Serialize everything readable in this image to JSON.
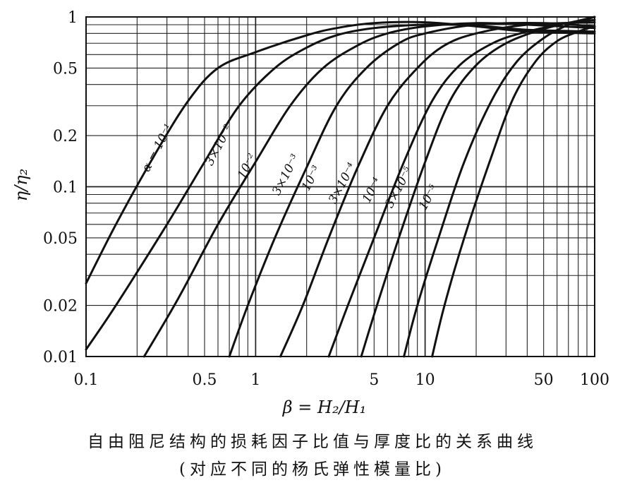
{
  "chart_data": {
    "type": "line",
    "title": "",
    "xlabel": "β = H₂/H₁",
    "ylabel": "η/η₂",
    "xscale": "log",
    "yscale": "log",
    "xlim": [
      0.1,
      100
    ],
    "ylim": [
      0.01,
      1
    ],
    "grid": true,
    "x_ticks": [
      {
        "value": 0.1,
        "label": "0.1"
      },
      {
        "value": 0.5,
        "label": "0.5"
      },
      {
        "value": 1,
        "label": "1"
      },
      {
        "value": 5,
        "label": "5"
      },
      {
        "value": 10,
        "label": "10"
      },
      {
        "value": 50,
        "label": "50"
      },
      {
        "value": 100,
        "label": "100"
      }
    ],
    "y_ticks": [
      {
        "value": 1,
        "label": "1"
      },
      {
        "value": 0.5,
        "label": "0.5"
      },
      {
        "value": 0.2,
        "label": "0.2"
      },
      {
        "value": 0.1,
        "label": "0.1"
      },
      {
        "value": 0.05,
        "label": "0.05"
      },
      {
        "value": 0.02,
        "label": "0.02"
      },
      {
        "value": 0.01,
        "label": "0.01"
      }
    ],
    "series": [
      {
        "name": "α = 10⁻¹",
        "points": [
          [
            0.1,
            0.027
          ],
          [
            0.15,
            0.06
          ],
          [
            0.25,
            0.15
          ],
          [
            0.4,
            0.32
          ],
          [
            0.6,
            0.5
          ],
          [
            1,
            0.62
          ],
          [
            2,
            0.78
          ],
          [
            3,
            0.86
          ],
          [
            5,
            0.92
          ],
          [
            10,
            0.93
          ],
          [
            20,
            0.88
          ],
          [
            40,
            0.82
          ],
          [
            100,
            0.8
          ]
        ]
      },
      {
        "name": "3×10⁻²",
        "points": [
          [
            0.1,
            0.011
          ],
          [
            0.15,
            0.02
          ],
          [
            0.3,
            0.06
          ],
          [
            0.5,
            0.14
          ],
          [
            0.8,
            0.3
          ],
          [
            1.3,
            0.5
          ],
          [
            2,
            0.66
          ],
          [
            3,
            0.78
          ],
          [
            5,
            0.86
          ],
          [
            10,
            0.9
          ],
          [
            20,
            0.89
          ],
          [
            40,
            0.84
          ],
          [
            100,
            0.82
          ]
        ]
      },
      {
        "name": "10⁻²",
        "points": [
          [
            0.22,
            0.01
          ],
          [
            0.35,
            0.022
          ],
          [
            0.6,
            0.06
          ],
          [
            1,
            0.14
          ],
          [
            1.6,
            0.3
          ],
          [
            2.5,
            0.5
          ],
          [
            4,
            0.68
          ],
          [
            6,
            0.8
          ],
          [
            10,
            0.88
          ],
          [
            20,
            0.92
          ],
          [
            40,
            0.9
          ],
          [
            100,
            0.86
          ]
        ]
      },
      {
        "name": "3×10⁻³",
        "points": [
          [
            0.7,
            0.01
          ],
          [
            0.9,
            0.02
          ],
          [
            1.3,
            0.05
          ],
          [
            2,
            0.13
          ],
          [
            3,
            0.3
          ],
          [
            4.5,
            0.5
          ],
          [
            7,
            0.7
          ],
          [
            10,
            0.8
          ],
          [
            20,
            0.9
          ],
          [
            50,
            0.92
          ],
          [
            100,
            0.88
          ]
        ]
      },
      {
        "name": "10⁻³",
        "points": [
          [
            1.4,
            0.01
          ],
          [
            1.9,
            0.02
          ],
          [
            2.7,
            0.05
          ],
          [
            4,
            0.13
          ],
          [
            6,
            0.3
          ],
          [
            9,
            0.5
          ],
          [
            13,
            0.68
          ],
          [
            20,
            0.8
          ],
          [
            40,
            0.9
          ],
          [
            100,
            0.93
          ]
        ]
      },
      {
        "name": "3×10⁻⁴",
        "points": [
          [
            2.7,
            0.01
          ],
          [
            3.5,
            0.02
          ],
          [
            5,
            0.05
          ],
          [
            7.5,
            0.14
          ],
          [
            11,
            0.32
          ],
          [
            16,
            0.52
          ],
          [
            25,
            0.7
          ],
          [
            40,
            0.82
          ],
          [
            70,
            0.92
          ],
          [
            100,
            0.96
          ]
        ]
      },
      {
        "name": "10⁻⁴",
        "points": [
          [
            4.2,
            0.01
          ],
          [
            5.2,
            0.02
          ],
          [
            7,
            0.05
          ],
          [
            10,
            0.14
          ],
          [
            14,
            0.32
          ],
          [
            20,
            0.52
          ],
          [
            30,
            0.7
          ],
          [
            50,
            0.85
          ],
          [
            80,
            0.95
          ],
          [
            100,
            1.0
          ]
        ]
      },
      {
        "name": "3×10⁻⁵",
        "points": [
          [
            7.5,
            0.01
          ],
          [
            9,
            0.02
          ],
          [
            12,
            0.05
          ],
          [
            17,
            0.14
          ],
          [
            25,
            0.33
          ],
          [
            35,
            0.55
          ],
          [
            50,
            0.75
          ],
          [
            70,
            0.9
          ],
          [
            90,
            0.97
          ],
          [
            100,
            1.0
          ]
        ]
      },
      {
        "name": "10⁻⁵",
        "points": [
          [
            11,
            0.01
          ],
          [
            13,
            0.02
          ],
          [
            17,
            0.05
          ],
          [
            24,
            0.14
          ],
          [
            33,
            0.33
          ],
          [
            45,
            0.55
          ],
          [
            60,
            0.72
          ],
          [
            80,
            0.82
          ],
          [
            100,
            0.88
          ]
        ]
      }
    ]
  },
  "caption": {
    "line1": "自由阻尼结构的损耗因子比值与厚度比的关系曲线",
    "line2": "(对应不同的杨氏弹性模量比)"
  }
}
